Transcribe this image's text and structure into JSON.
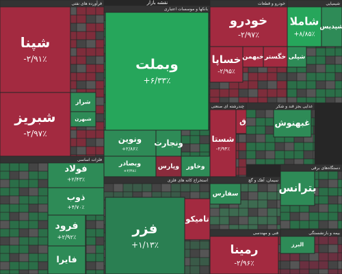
{
  "header": {
    "title": "نقشه بازار"
  },
  "sectors": [
    {
      "label": "فرآورده های نفتی",
      "tiles": [
        {
          "name": "شپنا",
          "change": "-۲/۹۱٪",
          "color": "#a32a40"
        },
        {
          "name": "شبریز",
          "change": "-۲/۹۷٪",
          "color": "#a32a40"
        },
        {
          "name": "شراز",
          "color": "#2e8b57"
        },
        {
          "name": "شبهرن",
          "color": "#2e8b57"
        }
      ]
    },
    {
      "label": "بانکها و موسسات اعتباری",
      "tiles": [
        {
          "name": "وبملت",
          "change": "+۶/۳۳٪",
          "color": "#26a65b"
        },
        {
          "name": "ونوین",
          "change": "+۲/۸۶٪",
          "color": "#2e8b57"
        },
        {
          "name": "ونجارت",
          "color": "#2e8b57"
        },
        {
          "name": "وبصادر",
          "change": "+۲/۴۸٪",
          "color": "#2e8b57"
        },
        {
          "name": "وپارس",
          "color": "#8a2b3c"
        },
        {
          "name": "وخاور",
          "color": "#2e8b57"
        }
      ]
    },
    {
      "label": "خودرو و قطعات",
      "tiles": [
        {
          "name": "خودرو",
          "change": "-۲/۹۷٪",
          "color": "#a32a40"
        },
        {
          "name": "خساپا",
          "change": "-۲/۹۵٪",
          "color": "#a32a40"
        },
        {
          "name": "خبهمن",
          "color": "#a32a40"
        },
        {
          "name": "خگستر",
          "color": "#a32a40"
        }
      ]
    },
    {
      "label": "شیمیایی",
      "tiles": [
        {
          "name": "شاملا",
          "change": "+۸/۸۵٪",
          "color": "#26a65b"
        },
        {
          "name": "شپدیس",
          "color": "#2e8b57"
        },
        {
          "name": "شپلی",
          "color": "#2e8b57"
        }
      ]
    },
    {
      "label": "فلزات اساسی",
      "tiles": [
        {
          "name": "فولاد",
          "change": "+۲/۴۳٪",
          "color": "#2e8b57"
        },
        {
          "name": "ذوب",
          "change": "+۴/۷۰٪",
          "color": "#2e8b57"
        },
        {
          "name": "فرود",
          "change": "+۲/۹۲٪",
          "color": "#2e8b57"
        },
        {
          "name": "فایرا",
          "color": "#2e8b57"
        }
      ]
    },
    {
      "label": "استخراج کانه های فلزی",
      "tiles": [
        {
          "name": "فزر",
          "change": "+۱/۱۳٪",
          "color": "#2a7f52"
        },
        {
          "name": "تامیکو",
          "color": "#a32a40"
        }
      ]
    },
    {
      "label": "چندرشته ای صنعتی",
      "tiles": [
        {
          "name": "شستا",
          "change": "-۲/۹۴٪",
          "color": "#a32a40"
        },
        {
          "name": "وصندوق",
          "color": "#a32a40"
        }
      ]
    },
    {
      "label": "غذایی بجز قند و شکر",
      "tiles": [
        {
          "name": "غبهنوش",
          "color": "#2e8b57"
        }
      ]
    },
    {
      "label": "سیمان، آهک و گچ",
      "tiles": [
        {
          "name": "سفارس",
          "color": "#2e8b57"
        }
      ]
    },
    {
      "label": "دستگاه‌های برقی",
      "tiles": [
        {
          "name": "بترانس",
          "color": "#2e8b57"
        }
      ]
    },
    {
      "label": "فنی و مهندسی",
      "tiles": [
        {
          "name": "رمینا",
          "change": "-۲/۹۶٪",
          "color": "#a32a40"
        }
      ]
    },
    {
      "label": "بیمه و بازنشستگی",
      "tiles": [
        {
          "name": "البرز",
          "color": "#2e8b57"
        }
      ]
    }
  ]
}
